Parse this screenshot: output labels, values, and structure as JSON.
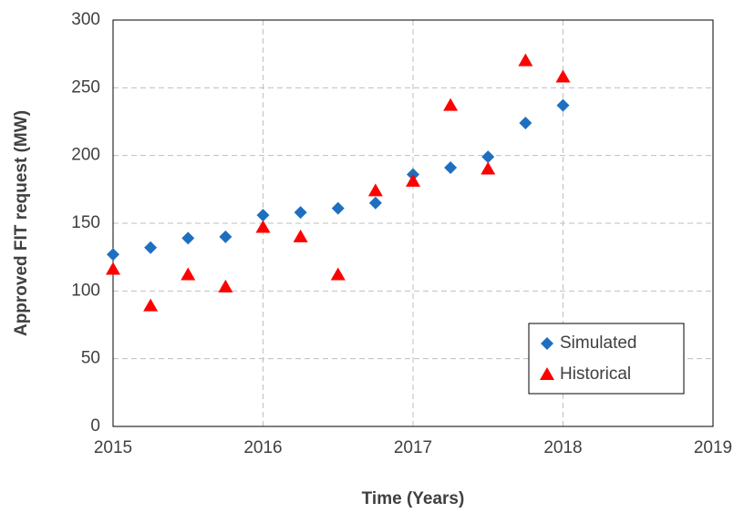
{
  "chart_data": {
    "type": "scatter",
    "xlabel": "Time (Years)",
    "ylabel": "Approved FIT request (MW)",
    "x": [
      2015,
      2015.25,
      2015.5,
      2015.75,
      2016,
      2016.25,
      2016.5,
      2016.75,
      2017,
      2017.25,
      2017.5,
      2017.75,
      2018
    ],
    "series": [
      {
        "name": "Simulated",
        "color": "#1f6fc0",
        "marker": "diamond",
        "values": [
          127,
          132,
          139,
          140,
          156,
          158,
          161,
          165,
          186,
          191,
          199,
          224,
          237
        ]
      },
      {
        "name": "Historical",
        "color": "#ff0000",
        "marker": "triangle",
        "values": [
          116,
          89,
          112,
          103,
          147,
          140,
          112,
          174,
          181,
          237,
          190,
          270,
          258
        ]
      }
    ],
    "xlim": [
      2015,
      2019
    ],
    "xticks": [
      2015,
      2016,
      2017,
      2018,
      2019
    ],
    "ylim": [
      0,
      300
    ],
    "yticks": [
      0,
      50,
      100,
      150,
      200,
      250,
      300
    ],
    "grid": true,
    "legend": "lower right"
  }
}
